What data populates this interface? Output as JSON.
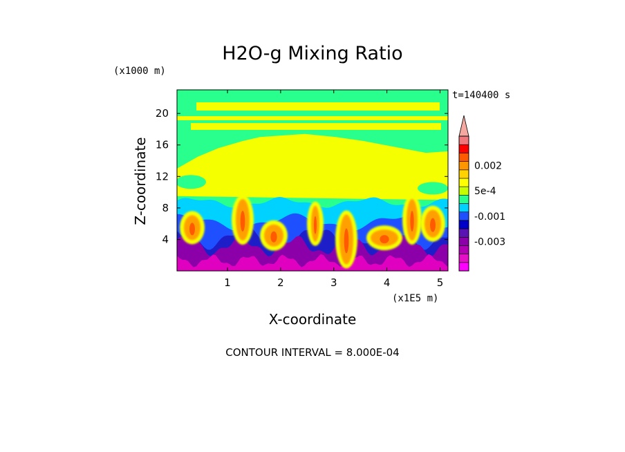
{
  "chart_data": {
    "type": "heatmap",
    "title": "H2O-g Mixing Ratio",
    "xlabel": "X-coordinate",
    "ylabel": "Z-coordinate",
    "x_unit": "(x1E5 m)",
    "y_unit": "(x1000 m)",
    "xlim": [
      0.05,
      5.15
    ],
    "ylim": [
      0,
      23
    ],
    "x_ticks": [
      1,
      2,
      3,
      4,
      5
    ],
    "y_ticks": [
      4,
      8,
      12,
      16,
      20
    ],
    "time_label": "t=140400 s",
    "footer": "CONTOUR INTERVAL = 8.000E-04",
    "contour_interval": 0.0008,
    "colorbar": {
      "extend": "max",
      "levels": [
        {
          "label": "",
          "color": "#ff00ff"
        },
        {
          "label": "",
          "color": "#e60fc8"
        },
        {
          "label": "",
          "color": "#b400b4"
        },
        {
          "label": "-0.003",
          "color": "#8c00aa"
        },
        {
          "label": "",
          "color": "#5a14b4"
        },
        {
          "label": "",
          "color": "#0000c8"
        },
        {
          "label": "-0.001",
          "color": "#1e50ff"
        },
        {
          "label": "",
          "color": "#00d2ff"
        },
        {
          "label": "",
          "color": "#28ff8c"
        },
        {
          "label": "5e-4",
          "color": "#c8ff00"
        },
        {
          "label": "",
          "color": "#ffff00"
        },
        {
          "label": "",
          "color": "#ffd200"
        },
        {
          "label": "0.002",
          "color": "#ff9600"
        },
        {
          "label": "",
          "color": "#ff5a00"
        },
        {
          "label": "",
          "color": "#ff0000"
        },
        {
          "label": "",
          "color": "#f0787c"
        }
      ],
      "extend_color": "#f4a8a0"
    },
    "palette": {
      "magenta": "#e000c0",
      "purple": "#8c00aa",
      "darkblue": "#1e1ec8",
      "blue": "#1e50ff",
      "cyan": "#00d2ff",
      "green": "#28ff8c",
      "yellow": "#f5ff00",
      "orange": "#ffa000",
      "red": "#ff5a00"
    }
  }
}
